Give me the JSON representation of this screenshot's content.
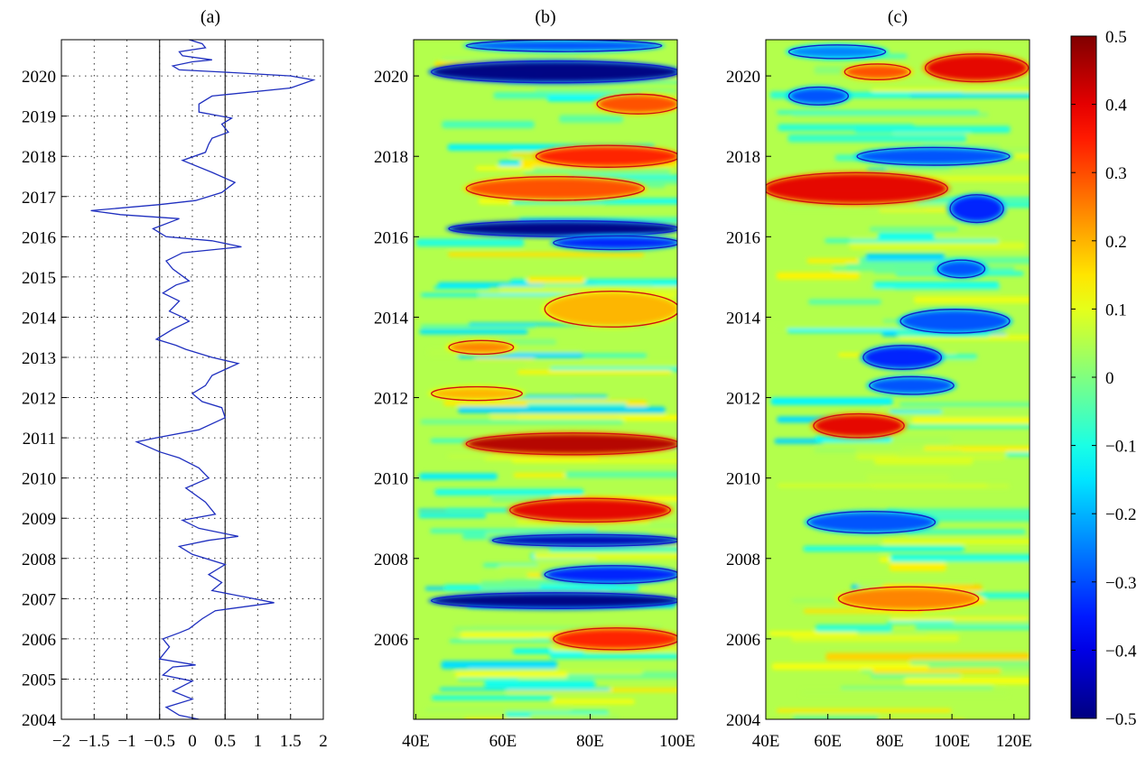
{
  "chart_data": [
    {
      "panel": "a",
      "type": "line",
      "title": "(a)",
      "orientation": "vertical-time",
      "x_ticks": [
        "−2",
        "−1.5",
        "−1",
        "−0.5",
        "0",
        "0.5",
        "1",
        "1.5",
        "2"
      ],
      "y_ticks": [
        "2004",
        "2005",
        "2006",
        "2007",
        "2008",
        "2009",
        "2010",
        "2011",
        "2012",
        "2013",
        "2014",
        "2015",
        "2016",
        "2017",
        "2018",
        "2019",
        "2020"
      ],
      "xlim": [
        -2,
        2
      ],
      "ylim": [
        2004,
        2020.9
      ],
      "grid": true,
      "threshold_lines": [
        -0.5,
        0.5
      ],
      "line_color": "#1f2fbf",
      "series": [
        {
          "points": [
            [
              0.1,
              2004.0
            ],
            [
              -0.2,
              2004.1
            ],
            [
              -0.4,
              2004.3
            ],
            [
              0.0,
              2004.5
            ],
            [
              -0.3,
              2004.7
            ],
            [
              0.0,
              2004.95
            ],
            [
              -0.45,
              2005.1
            ],
            [
              -0.3,
              2005.3
            ],
            [
              0.05,
              2005.35
            ],
            [
              -0.5,
              2005.5
            ],
            [
              -0.35,
              2005.8
            ],
            [
              -0.45,
              2006.0
            ],
            [
              -0.2,
              2006.15
            ],
            [
              -0.05,
              2006.25
            ],
            [
              0.15,
              2006.5
            ],
            [
              0.35,
              2006.7
            ],
            [
              1.25,
              2006.9
            ],
            [
              0.3,
              2007.2
            ],
            [
              0.45,
              2007.4
            ],
            [
              0.25,
              2007.6
            ],
            [
              0.5,
              2007.85
            ],
            [
              0.0,
              2008.1
            ],
            [
              -0.2,
              2008.3
            ],
            [
              0.25,
              2008.45
            ],
            [
              0.7,
              2008.55
            ],
            [
              0.1,
              2008.75
            ],
            [
              -0.15,
              2008.95
            ],
            [
              0.35,
              2009.1
            ],
            [
              0.2,
              2009.4
            ],
            [
              -0.1,
              2009.75
            ],
            [
              0.25,
              2010.0
            ],
            [
              0.1,
              2010.25
            ],
            [
              -0.2,
              2010.5
            ],
            [
              -0.5,
              2010.65
            ],
            [
              -0.85,
              2010.9
            ],
            [
              -0.55,
              2011.0
            ],
            [
              0.1,
              2011.2
            ],
            [
              0.5,
              2011.5
            ],
            [
              0.45,
              2011.75
            ],
            [
              0.15,
              2011.9
            ],
            [
              0.0,
              2012.1
            ],
            [
              0.2,
              2012.3
            ],
            [
              0.3,
              2012.55
            ],
            [
              0.7,
              2012.85
            ],
            [
              0.3,
              2013.0
            ],
            [
              -0.1,
              2013.2
            ],
            [
              -0.25,
              2013.3
            ],
            [
              -0.55,
              2013.45
            ],
            [
              -0.3,
              2013.7
            ],
            [
              -0.05,
              2013.9
            ],
            [
              -0.15,
              2014.0
            ],
            [
              -0.35,
              2014.15
            ],
            [
              -0.2,
              2014.4
            ],
            [
              -0.45,
              2014.6
            ],
            [
              -0.25,
              2014.8
            ],
            [
              -0.05,
              2014.9
            ],
            [
              -0.3,
              2015.2
            ],
            [
              -0.4,
              2015.4
            ],
            [
              -0.15,
              2015.6
            ],
            [
              0.75,
              2015.75
            ],
            [
              0.3,
              2015.9
            ],
            [
              -0.4,
              2016.0
            ],
            [
              -0.6,
              2016.2
            ],
            [
              -0.2,
              2016.45
            ],
            [
              -1.1,
              2016.55
            ],
            [
              -1.55,
              2016.65
            ],
            [
              -0.5,
              2016.8
            ],
            [
              0.05,
              2016.9
            ],
            [
              0.45,
              2017.1
            ],
            [
              0.65,
              2017.35
            ],
            [
              0.3,
              2017.6
            ],
            [
              -0.15,
              2017.9
            ],
            [
              0.2,
              2018.1
            ],
            [
              0.25,
              2018.3
            ],
            [
              0.3,
              2018.45
            ],
            [
              0.55,
              2018.6
            ],
            [
              0.45,
              2018.8
            ],
            [
              0.6,
              2018.95
            ],
            [
              0.1,
              2019.1
            ],
            [
              0.1,
              2019.3
            ],
            [
              0.3,
              2019.5
            ],
            [
              1.5,
              2019.7
            ],
            [
              1.85,
              2019.9
            ],
            [
              1.5,
              2020.0
            ],
            [
              0.4,
              2020.1
            ],
            [
              -0.2,
              2020.15
            ],
            [
              -0.3,
              2020.25
            ],
            [
              0.0,
              2020.35
            ],
            [
              0.3,
              2020.4
            ],
            [
              -0.15,
              2020.5
            ],
            [
              -0.2,
              2020.6
            ],
            [
              0.2,
              2020.7
            ],
            [
              0.15,
              2020.8
            ],
            [
              -0.05,
              2020.9
            ]
          ]
        }
      ]
    },
    {
      "panel": "b",
      "type": "heatmap",
      "title": "(b)",
      "x_ticks": [
        "40E",
        "60E",
        "80E",
        "100E"
      ],
      "x_tick_values": [
        40,
        60,
        80,
        100
      ],
      "y_ticks": [
        "2006",
        "2008",
        "2010",
        "2012",
        "2014",
        "2016",
        "2018",
        "2020"
      ],
      "y_tick_values": [
        2006,
        2008,
        2010,
        2012,
        2014,
        2016,
        2018,
        2020
      ],
      "xlim": [
        39.5,
        100
      ],
      "ylim": [
        2004,
        2020.9
      ],
      "features": [
        {
          "x0": 44,
          "x1": 100,
          "y": 2020.1,
          "h": 0.45,
          "value": -0.5
        },
        {
          "x0": 52,
          "x1": 96,
          "y": 2020.75,
          "h": 0.2,
          "value": -0.3
        },
        {
          "x0": 82,
          "x1": 100,
          "y": 2019.3,
          "h": 0.4,
          "value": 0.3
        },
        {
          "x0": 68,
          "x1": 100,
          "y": 2018.0,
          "h": 0.45,
          "value": 0.35
        },
        {
          "x0": 52,
          "x1": 92,
          "y": 2017.2,
          "h": 0.5,
          "value": 0.3
        },
        {
          "x0": 48,
          "x1": 100,
          "y": 2016.2,
          "h": 0.3,
          "value": -0.5
        },
        {
          "x0": 72,
          "x1": 100,
          "y": 2015.85,
          "h": 0.25,
          "value": -0.35
        },
        {
          "x0": 70,
          "x1": 100,
          "y": 2014.2,
          "h": 0.8,
          "value": 0.2
        },
        {
          "x0": 48,
          "x1": 62,
          "y": 2013.25,
          "h": 0.25,
          "value": 0.25
        },
        {
          "x0": 44,
          "x1": 64,
          "y": 2012.1,
          "h": 0.25,
          "value": 0.2
        },
        {
          "x0": 52,
          "x1": 100,
          "y": 2010.85,
          "h": 0.45,
          "value": 0.45
        },
        {
          "x0": 62,
          "x1": 98,
          "y": 2009.2,
          "h": 0.5,
          "value": 0.4
        },
        {
          "x0": 58,
          "x1": 100,
          "y": 2008.45,
          "h": 0.2,
          "value": -0.45
        },
        {
          "x0": 70,
          "x1": 100,
          "y": 2007.6,
          "h": 0.35,
          "value": -0.35
        },
        {
          "x0": 44,
          "x1": 100,
          "y": 2006.95,
          "h": 0.3,
          "value": -0.5
        },
        {
          "x0": 72,
          "x1": 100,
          "y": 2006.0,
          "h": 0.45,
          "value": 0.35
        }
      ],
      "contour_colors": {
        "positive": "#d01010",
        "negative": "#1020c8"
      }
    },
    {
      "panel": "c",
      "type": "heatmap",
      "title": "(c)",
      "x_ticks": [
        "40E",
        "60E",
        "80E",
        "100E",
        "120E"
      ],
      "x_tick_values": [
        40,
        60,
        80,
        100,
        120
      ],
      "y_ticks": [
        "2004",
        "2006",
        "2008",
        "2010",
        "2012",
        "2014",
        "2016",
        "2018",
        "2020"
      ],
      "y_tick_values": [
        2004,
        2006,
        2008,
        2010,
        2012,
        2014,
        2016,
        2018,
        2020
      ],
      "xlim": [
        40,
        125
      ],
      "ylim": [
        2004,
        2020.9
      ],
      "features": [
        {
          "x0": 92,
          "x1": 124,
          "y": 2020.2,
          "h": 0.6,
          "value": 0.4
        },
        {
          "x0": 66,
          "x1": 86,
          "y": 2020.1,
          "h": 0.3,
          "value": 0.3
        },
        {
          "x0": 48,
          "x1": 78,
          "y": 2020.6,
          "h": 0.25,
          "value": -0.25
        },
        {
          "x0": 48,
          "x1": 66,
          "y": 2019.5,
          "h": 0.35,
          "value": -0.3
        },
        {
          "x0": 70,
          "x1": 118,
          "y": 2018.0,
          "h": 0.35,
          "value": -0.3
        },
        {
          "x0": 40,
          "x1": 98,
          "y": 2017.2,
          "h": 0.7,
          "value": 0.4
        },
        {
          "x0": 100,
          "x1": 116,
          "y": 2016.7,
          "h": 0.6,
          "value": -0.35
        },
        {
          "x0": 96,
          "x1": 110,
          "y": 2015.2,
          "h": 0.35,
          "value": -0.3
        },
        {
          "x0": 84,
          "x1": 118,
          "y": 2013.9,
          "h": 0.5,
          "value": -0.3
        },
        {
          "x0": 72,
          "x1": 96,
          "y": 2013.0,
          "h": 0.5,
          "value": -0.35
        },
        {
          "x0": 74,
          "x1": 100,
          "y": 2012.3,
          "h": 0.35,
          "value": -0.3
        },
        {
          "x0": 56,
          "x1": 84,
          "y": 2011.3,
          "h": 0.5,
          "value": 0.4
        },
        {
          "x0": 54,
          "x1": 94,
          "y": 2008.9,
          "h": 0.45,
          "value": -0.3
        },
        {
          "x0": 64,
          "x1": 108,
          "y": 2007.0,
          "h": 0.5,
          "value": 0.25
        }
      ],
      "contour_colors": {
        "positive": "#d01010",
        "negative": "#1020c8"
      }
    },
    {
      "panel": "colorbar",
      "type": "colorbar",
      "colormap": "jet",
      "range": [
        -0.5,
        0.5
      ],
      "tick_labels": [
        "0.5",
        "0.4",
        "0.3",
        "0.2",
        "0.1",
        "0",
        "−0.1",
        "−0.2",
        "−0.3",
        "−0.4",
        "−0.5"
      ],
      "tick_values": [
        0.5,
        0.4,
        0.3,
        0.2,
        0.1,
        0,
        -0.1,
        -0.2,
        -0.3,
        -0.4,
        -0.5
      ]
    }
  ]
}
